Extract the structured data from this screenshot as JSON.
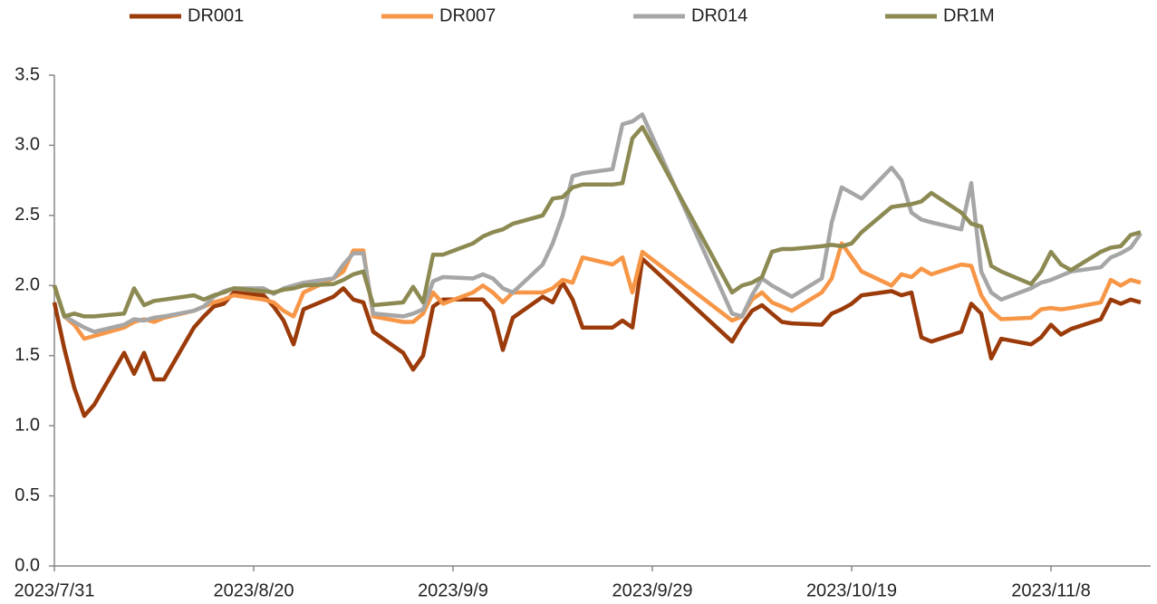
{
  "chart_data": {
    "type": "line",
    "legend": "top",
    "x": [
      "2023/7/31",
      "2023/8/1",
      "2023/8/2",
      "2023/8/3",
      "2023/8/4",
      "2023/8/7",
      "2023/8/8",
      "2023/8/9",
      "2023/8/10",
      "2023/8/11",
      "2023/8/14",
      "2023/8/15",
      "2023/8/16",
      "2023/8/17",
      "2023/8/18",
      "2023/8/21",
      "2023/8/22",
      "2023/8/23",
      "2023/8/24",
      "2023/8/25",
      "2023/8/28",
      "2023/8/29",
      "2023/8/30",
      "2023/8/31",
      "2023/9/1",
      "2023/9/4",
      "2023/9/5",
      "2023/9/6",
      "2023/9/7",
      "2023/9/8",
      "2023/9/11",
      "2023/9/12",
      "2023/9/13",
      "2023/9/14",
      "2023/9/15",
      "2023/9/18",
      "2023/9/19",
      "2023/9/20",
      "2023/9/21",
      "2023/9/22",
      "2023/9/25",
      "2023/9/26",
      "2023/9/27",
      "2023/9/28",
      "2023/10/7",
      "2023/10/8",
      "2023/10/9",
      "2023/10/10",
      "2023/10/11",
      "2023/10/12",
      "2023/10/13",
      "2023/10/16",
      "2023/10/17",
      "2023/10/18",
      "2023/10/19",
      "2023/10/20",
      "2023/10/23",
      "2023/10/24",
      "2023/10/25",
      "2023/10/26",
      "2023/10/27",
      "2023/10/30",
      "2023/10/31",
      "2023/11/1",
      "2023/11/2",
      "2023/11/3",
      "2023/11/6",
      "2023/11/7",
      "2023/11/8",
      "2023/11/9",
      "2023/11/10",
      "2023/11/13",
      "2023/11/14",
      "2023/11/15",
      "2023/11/16",
      "2023/11/17"
    ],
    "series": [
      {
        "name": "DR001",
        "color": "#9c3b0a",
        "values": [
          1.88,
          1.55,
          1.27,
          1.07,
          1.15,
          1.52,
          1.37,
          1.52,
          1.33,
          1.33,
          1.7,
          1.78,
          1.85,
          1.87,
          1.95,
          1.93,
          1.85,
          1.75,
          1.58,
          1.83,
          1.92,
          1.98,
          1.9,
          1.88,
          1.67,
          1.52,
          1.4,
          1.5,
          1.85,
          1.9,
          1.9,
          1.9,
          1.82,
          1.54,
          1.77,
          1.92,
          1.88,
          2.02,
          1.9,
          1.7,
          1.7,
          1.75,
          1.7,
          2.19,
          1.6,
          1.72,
          1.82,
          1.86,
          1.8,
          1.74,
          1.73,
          1.72,
          1.8,
          1.83,
          1.87,
          1.93,
          1.96,
          1.93,
          1.95,
          1.63,
          1.6,
          1.67,
          1.87,
          1.8,
          1.48,
          1.62,
          1.58,
          1.63,
          1.72,
          1.65,
          1.69,
          1.76,
          1.9,
          1.87,
          1.9,
          1.88
        ]
      },
      {
        "name": "DR007",
        "color": "#f79646",
        "values": [
          2.0,
          1.78,
          1.72,
          1.62,
          1.64,
          1.7,
          1.74,
          1.76,
          1.74,
          1.77,
          1.82,
          1.85,
          1.88,
          1.9,
          1.93,
          1.9,
          1.88,
          1.82,
          1.78,
          1.95,
          2.05,
          2.1,
          2.25,
          2.25,
          1.78,
          1.74,
          1.74,
          1.8,
          1.95,
          1.87,
          1.95,
          2.0,
          1.95,
          1.88,
          1.95,
          1.95,
          1.98,
          2.04,
          2.02,
          2.2,
          2.15,
          2.2,
          1.95,
          2.24,
          1.75,
          1.78,
          1.9,
          1.95,
          1.88,
          1.85,
          1.82,
          1.95,
          2.05,
          2.3,
          2.2,
          2.1,
          2.0,
          2.08,
          2.06,
          2.12,
          2.08,
          2.15,
          2.14,
          1.93,
          1.82,
          1.76,
          1.77,
          1.83,
          1.84,
          1.83,
          1.84,
          1.88,
          2.04,
          2.0,
          2.04,
          2.02
        ]
      },
      {
        "name": "DR014",
        "color": "#a6a6a6",
        "values": [
          2.0,
          1.78,
          1.74,
          1.7,
          1.67,
          1.72,
          1.76,
          1.75,
          1.77,
          1.78,
          1.82,
          1.85,
          1.92,
          1.96,
          1.98,
          1.98,
          1.94,
          1.98,
          2.0,
          2.02,
          2.05,
          2.15,
          2.23,
          2.23,
          1.8,
          1.78,
          1.8,
          1.83,
          2.03,
          2.06,
          2.05,
          2.08,
          2.05,
          1.98,
          1.95,
          2.15,
          2.3,
          2.5,
          2.78,
          2.8,
          2.83,
          3.15,
          3.17,
          3.22,
          1.8,
          1.78,
          1.93,
          2.05,
          2.0,
          1.96,
          1.92,
          2.05,
          2.45,
          2.7,
          2.66,
          2.62,
          2.84,
          2.75,
          2.52,
          2.47,
          2.45,
          2.4,
          2.73,
          2.1,
          1.95,
          1.9,
          1.98,
          2.02,
          2.04,
          2.07,
          2.1,
          2.13,
          2.2,
          2.23,
          2.27,
          2.37
        ]
      },
      {
        "name": "DR1M",
        "color": "#8c8a52",
        "values": [
          2.0,
          1.78,
          1.8,
          1.78,
          1.78,
          1.8,
          1.98,
          1.86,
          1.89,
          1.9,
          1.93,
          1.9,
          1.93,
          1.95,
          1.98,
          1.96,
          1.95,
          1.97,
          1.98,
          2.0,
          2.01,
          2.04,
          2.08,
          2.1,
          1.86,
          1.88,
          1.99,
          1.88,
          2.22,
          2.22,
          2.3,
          2.35,
          2.38,
          2.4,
          2.44,
          2.5,
          2.62,
          2.63,
          2.7,
          2.72,
          2.72,
          2.73,
          3.05,
          3.13,
          1.95,
          2.0,
          2.02,
          2.06,
          2.24,
          2.26,
          2.26,
          2.28,
          2.29,
          2.28,
          2.3,
          2.38,
          2.56,
          2.57,
          2.58,
          2.6,
          2.66,
          2.52,
          2.44,
          2.42,
          2.14,
          2.1,
          2.01,
          2.1,
          2.24,
          2.15,
          2.11,
          2.24,
          2.27,
          2.28,
          2.36,
          2.38
        ]
      }
    ],
    "xlim": [
      "2023/7/31",
      "2023/11/18"
    ],
    "xticks": [
      "2023/7/31",
      "2023/8/20",
      "2023/9/9",
      "2023/9/29",
      "2023/10/19",
      "2023/11/8"
    ],
    "ylim": [
      0,
      3.5
    ],
    "yticks": [
      {
        "value": 0,
        "label": "0.0"
      },
      {
        "value": 0.5,
        "label": "0.5"
      },
      {
        "value": 1,
        "label": "1.0"
      },
      {
        "value": 1.5,
        "label": "1.5"
      },
      {
        "value": 2,
        "label": "2.0"
      },
      {
        "value": 2.5,
        "label": "2.5"
      },
      {
        "value": 3,
        "label": "3.0"
      },
      {
        "value": 3.5,
        "label": "3.5"
      }
    ],
    "grid": false
  }
}
